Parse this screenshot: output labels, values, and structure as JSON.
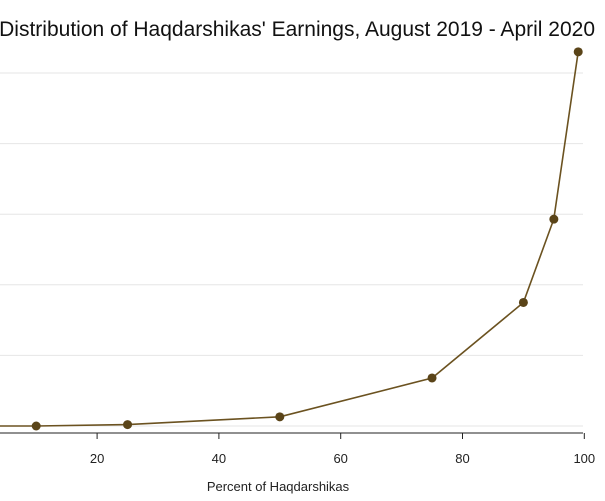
{
  "chart_data": {
    "type": "line",
    "title": "Distribution of Haqdarshikas' Earnings, August 2019 - April 2020",
    "xlabel": "Percent of Haqdarshikas",
    "ylabel": "",
    "xlim": [
      0,
      100
    ],
    "ylim": [
      0,
      5
    ],
    "x_ticks": [
      20,
      40,
      60,
      80,
      100
    ],
    "grid": true,
    "colors": {
      "line": "#6b5220",
      "marker": "#5a4418",
      "grid": "#e6e6e6",
      "axis": "#222222"
    },
    "series": [
      {
        "x": [
          0,
          10,
          25,
          50,
          75,
          90,
          95,
          99
        ],
        "y": [
          0.0,
          0.0,
          0.02,
          0.13,
          0.68,
          1.75,
          2.93,
          5.3
        ]
      }
    ]
  }
}
